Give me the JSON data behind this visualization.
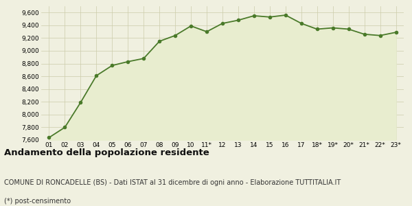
{
  "x_labels": [
    "01",
    "02",
    "03",
    "04",
    "05",
    "06",
    "07",
    "08",
    "09",
    "10",
    "11*",
    "12",
    "13",
    "14",
    "15",
    "16",
    "17",
    "18*",
    "19*",
    "20*",
    "21*",
    "22*",
    "23*"
  ],
  "y_values": [
    7640,
    7800,
    8190,
    8610,
    8770,
    8830,
    8880,
    9150,
    9240,
    9390,
    9300,
    9430,
    9480,
    9550,
    9530,
    9560,
    9430,
    9340,
    9360,
    9340,
    9260,
    9240,
    9290
  ],
  "line_color": "#4a7a2a",
  "fill_color": "#e8edcf",
  "marker_color": "#4a7a2a",
  "bg_color": "#f0f0e0",
  "grid_color": "#ccccaa",
  "fig_bg_color": "#f0f0e0",
  "ylim_min": 7600,
  "ylim_max": 9700,
  "yticks": [
    7600,
    7800,
    8000,
    8200,
    8400,
    8600,
    8800,
    9000,
    9200,
    9400,
    9600
  ],
  "title": "Andamento della popolazione residente",
  "subtitle": "COMUNE DI RONCADELLE (BS) - Dati ISTAT al 31 dicembre di ogni anno - Elaborazione TUTTITALIA.IT",
  "footnote": "(*) post-censimento",
  "title_fontsize": 9.5,
  "subtitle_fontsize": 7,
  "footnote_fontsize": 7
}
